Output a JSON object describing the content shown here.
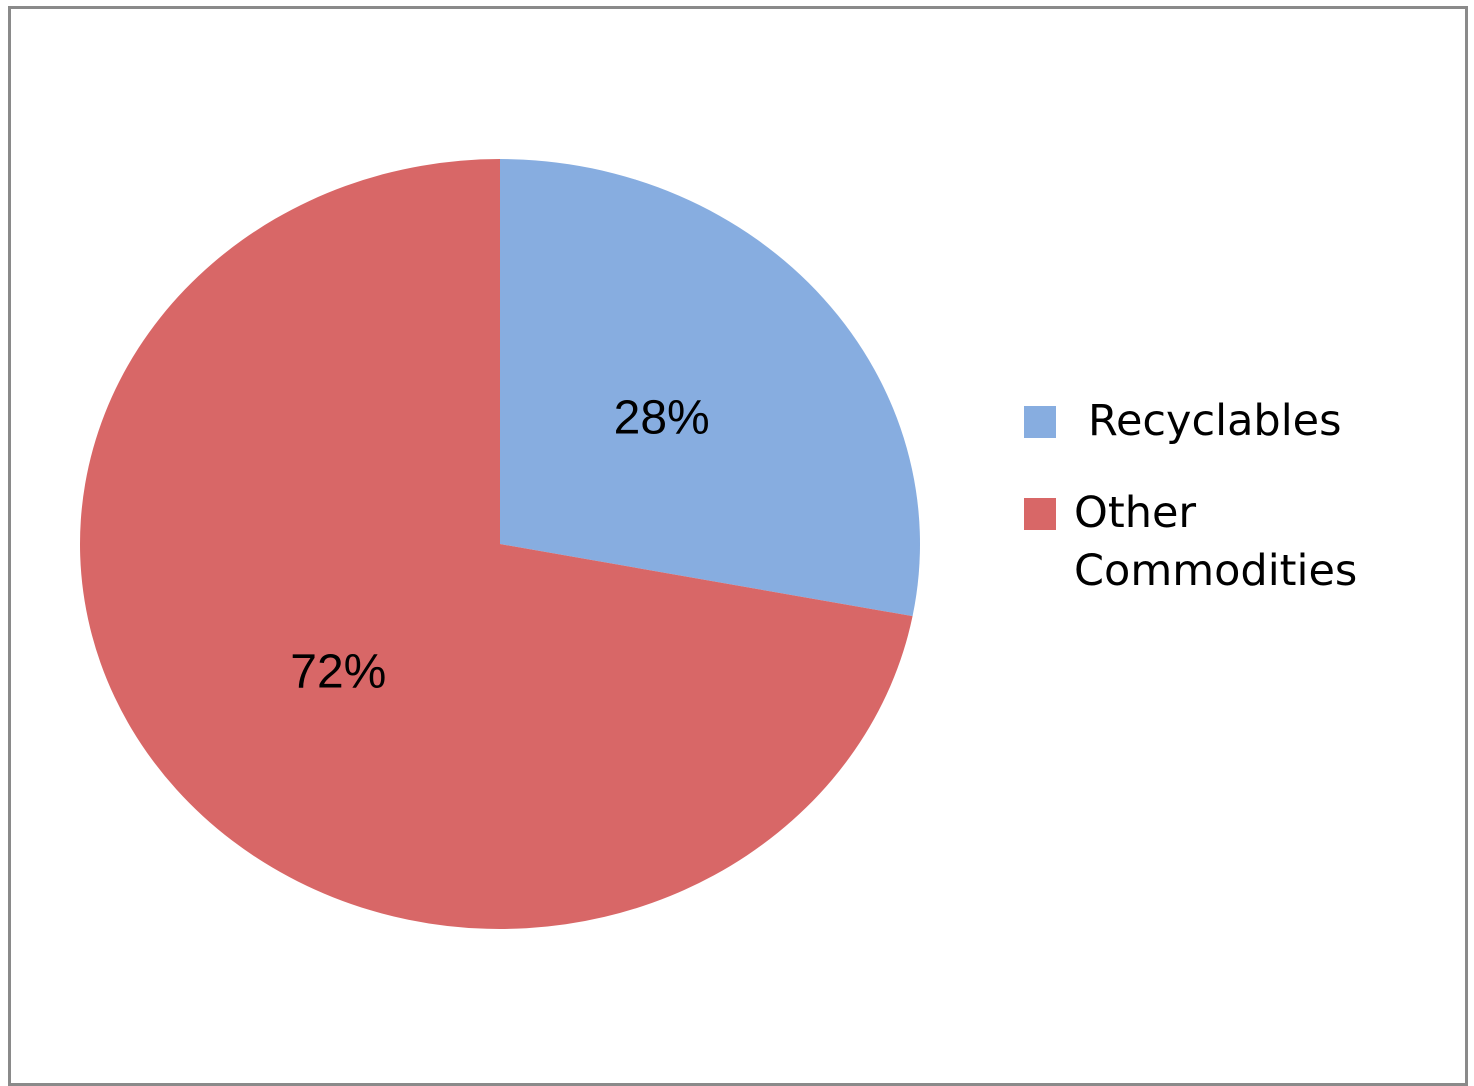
{
  "chart_data": {
    "type": "pie",
    "title": "",
    "legend": "right",
    "slices": [
      {
        "label": "Recyclables",
        "value": 28,
        "display": "28%",
        "color": "#87ADE0"
      },
      {
        "label": "Other Commodities",
        "value": 72,
        "display": "72%",
        "color": "#D86767"
      }
    ]
  }
}
